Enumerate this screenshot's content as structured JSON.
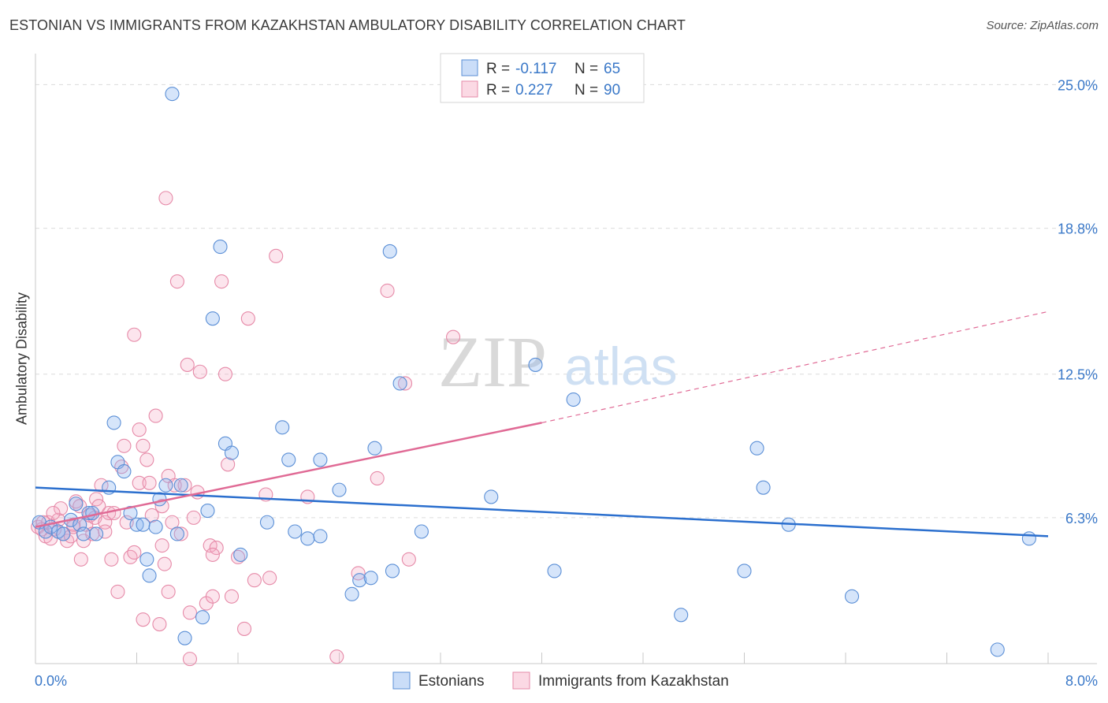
{
  "header": {
    "title": "ESTONIAN VS IMMIGRANTS FROM KAZAKHSTAN AMBULATORY DISABILITY CORRELATION CHART",
    "source": "Source: ZipAtlas.com"
  },
  "watermark": {
    "zip": "ZIP",
    "atlas": "atlas"
  },
  "colors": {
    "blue_fill": "rgba(138,180,240,0.35)",
    "blue_stroke": "#5b8fd6",
    "blue_line": "#2b6fce",
    "pink_fill": "rgba(246,170,196,0.30)",
    "pink_stroke": "#e68aa8",
    "pink_line": "#e06a95",
    "axis_text": "#3a78c8"
  },
  "legend": {
    "rows": [
      {
        "r_label": "R = ",
        "r_value": "-0.117",
        "n_label": "N = ",
        "n_value": "65"
      },
      {
        "r_label": "R = ",
        "r_value": "0.227",
        "n_label": "N = ",
        "n_value": "90"
      }
    ]
  },
  "bottom_legend": {
    "items": [
      "Estonians",
      "Immigrants from Kazakhstan"
    ]
  },
  "chart_data": {
    "type": "scatter",
    "title": "ESTONIAN VS IMMIGRANTS FROM KAZAKHSTAN AMBULATORY DISABILITY CORRELATION CHART",
    "xlabel": "",
    "ylabel": "Ambulatory Disability",
    "xlim": [
      0,
      8
    ],
    "ylim": [
      0,
      26
    ],
    "x_tick_labels": [
      "0.0%",
      "8.0%"
    ],
    "y_ticks": [
      6.3,
      12.5,
      18.8,
      25.0
    ],
    "y_tick_labels": [
      "6.3%",
      "12.5%",
      "18.8%",
      "25.0%"
    ],
    "grid": "horizontal dashed",
    "legend_position": "top-center",
    "series": [
      {
        "name": "Estonians",
        "r": -0.117,
        "n": 65,
        "trend": {
          "x0": 0,
          "y0": 7.6,
          "x1": 8,
          "y1": 5.5
        },
        "points": [
          [
            0.03,
            6.1
          ],
          [
            0.08,
            5.7
          ],
          [
            0.12,
            5.9
          ],
          [
            0.18,
            5.7
          ],
          [
            0.22,
            5.6
          ],
          [
            0.28,
            6.2
          ],
          [
            0.32,
            6.9
          ],
          [
            0.35,
            6.0
          ],
          [
            0.38,
            5.6
          ],
          [
            0.42,
            6.5
          ],
          [
            0.45,
            6.5
          ],
          [
            0.48,
            5.6
          ],
          [
            0.58,
            7.6
          ],
          [
            0.62,
            10.4
          ],
          [
            0.65,
            8.7
          ],
          [
            0.7,
            8.3
          ],
          [
            0.75,
            6.5
          ],
          [
            0.8,
            6.0
          ],
          [
            0.85,
            6.0
          ],
          [
            0.88,
            4.5
          ],
          [
            0.9,
            3.8
          ],
          [
            0.95,
            5.9
          ],
          [
            0.98,
            7.1
          ],
          [
            1.03,
            7.7
          ],
          [
            1.12,
            5.6
          ],
          [
            1.15,
            7.7
          ],
          [
            1.18,
            1.1
          ],
          [
            1.08,
            24.6
          ],
          [
            1.32,
            2.0
          ],
          [
            1.36,
            6.6
          ],
          [
            1.4,
            14.9
          ],
          [
            1.46,
            18.0
          ],
          [
            1.5,
            9.5
          ],
          [
            1.55,
            9.1
          ],
          [
            1.62,
            4.7
          ],
          [
            1.83,
            6.1
          ],
          [
            1.95,
            10.2
          ],
          [
            2.0,
            8.8
          ],
          [
            2.05,
            5.7
          ],
          [
            2.15,
            5.4
          ],
          [
            2.25,
            5.5
          ],
          [
            2.25,
            8.8
          ],
          [
            2.4,
            7.5
          ],
          [
            2.5,
            3.0
          ],
          [
            2.56,
            3.6
          ],
          [
            2.65,
            3.7
          ],
          [
            2.68,
            9.3
          ],
          [
            2.8,
            17.8
          ],
          [
            2.82,
            4.0
          ],
          [
            2.88,
            12.1
          ],
          [
            3.05,
            5.7
          ],
          [
            3.6,
            7.2
          ],
          [
            3.95,
            12.9
          ],
          [
            4.1,
            4.0
          ],
          [
            4.25,
            11.4
          ],
          [
            5.1,
            2.1
          ],
          [
            5.6,
            4.0
          ],
          [
            5.7,
            9.3
          ],
          [
            5.75,
            7.6
          ],
          [
            5.95,
            6.0
          ],
          [
            6.45,
            2.9
          ],
          [
            7.6,
            0.6
          ],
          [
            7.85,
            5.4
          ]
        ]
      },
      {
        "name": "Immigrants from Kazakhstan",
        "r": 0.227,
        "n": 90,
        "trend": {
          "x0": 0,
          "y0": 5.9,
          "x1": 4.0,
          "y1": 10.4,
          "dashed_to_x": 8,
          "dashed_to_y": 15.2
        },
        "points": [
          [
            0.02,
            5.9
          ],
          [
            0.05,
            5.8
          ],
          [
            0.08,
            5.5
          ],
          [
            0.1,
            6.1
          ],
          [
            0.12,
            5.4
          ],
          [
            0.15,
            5.8
          ],
          [
            0.18,
            6.2
          ],
          [
            0.2,
            6.7
          ],
          [
            0.22,
            5.6
          ],
          [
            0.25,
            5.3
          ],
          [
            0.28,
            5.5
          ],
          [
            0.3,
            6.0
          ],
          [
            0.32,
            7.0
          ],
          [
            0.35,
            6.8
          ],
          [
            0.36,
            4.5
          ],
          [
            0.38,
            5.3
          ],
          [
            0.4,
            6.0
          ],
          [
            0.43,
            6.4
          ],
          [
            0.45,
            5.6
          ],
          [
            0.47,
            6.3
          ],
          [
            0.48,
            7.1
          ],
          [
            0.5,
            6.8
          ],
          [
            0.52,
            7.7
          ],
          [
            0.55,
            6.1
          ],
          [
            0.58,
            6.5
          ],
          [
            0.6,
            4.5
          ],
          [
            0.62,
            6.5
          ],
          [
            0.65,
            3.1
          ],
          [
            0.68,
            8.5
          ],
          [
            0.7,
            9.4
          ],
          [
            0.72,
            6.1
          ],
          [
            0.75,
            4.6
          ],
          [
            0.78,
            14.2
          ],
          [
            0.78,
            4.8
          ],
          [
            0.82,
            10.1
          ],
          [
            0.82,
            7.8
          ],
          [
            0.85,
            1.9
          ],
          [
            0.85,
            9.4
          ],
          [
            0.88,
            8.8
          ],
          [
            0.9,
            7.8
          ],
          [
            0.92,
            6.4
          ],
          [
            0.95,
            10.7
          ],
          [
            0.98,
            1.7
          ],
          [
            1.0,
            6.8
          ],
          [
            1.02,
            4.3
          ],
          [
            1.03,
            20.1
          ],
          [
            1.05,
            3.1
          ],
          [
            1.05,
            8.1
          ],
          [
            1.08,
            6.1
          ],
          [
            1.1,
            7.7
          ],
          [
            1.12,
            16.5
          ],
          [
            1.15,
            5.6
          ],
          [
            1.18,
            7.7
          ],
          [
            1.2,
            12.9
          ],
          [
            1.22,
            2.2
          ],
          [
            1.25,
            6.3
          ],
          [
            1.28,
            7.4
          ],
          [
            1.3,
            12.6
          ],
          [
            1.35,
            2.6
          ],
          [
            1.38,
            5.1
          ],
          [
            1.4,
            2.9
          ],
          [
            1.43,
            5.0
          ],
          [
            1.47,
            16.5
          ],
          [
            1.5,
            12.5
          ],
          [
            1.52,
            8.6
          ],
          [
            1.55,
            2.9
          ],
          [
            1.6,
            4.6
          ],
          [
            1.65,
            1.5
          ],
          [
            1.68,
            14.9
          ],
          [
            1.73,
            3.6
          ],
          [
            1.82,
            7.3
          ],
          [
            1.85,
            3.7
          ],
          [
            1.9,
            17.6
          ],
          [
            2.15,
            7.2
          ],
          [
            2.38,
            0.3
          ],
          [
            2.55,
            3.9
          ],
          [
            2.7,
            8.0
          ],
          [
            2.78,
            16.1
          ],
          [
            2.92,
            12.1
          ],
          [
            2.95,
            4.5
          ],
          [
            3.3,
            14.1
          ],
          [
            1.22,
            0.2
          ],
          [
            1.4,
            4.7
          ],
          [
            1.0,
            5.1
          ],
          [
            0.55,
            5.7
          ],
          [
            0.3,
            5.9
          ],
          [
            0.14,
            6.5
          ],
          [
            0.06,
            6.1
          ]
        ]
      }
    ]
  }
}
